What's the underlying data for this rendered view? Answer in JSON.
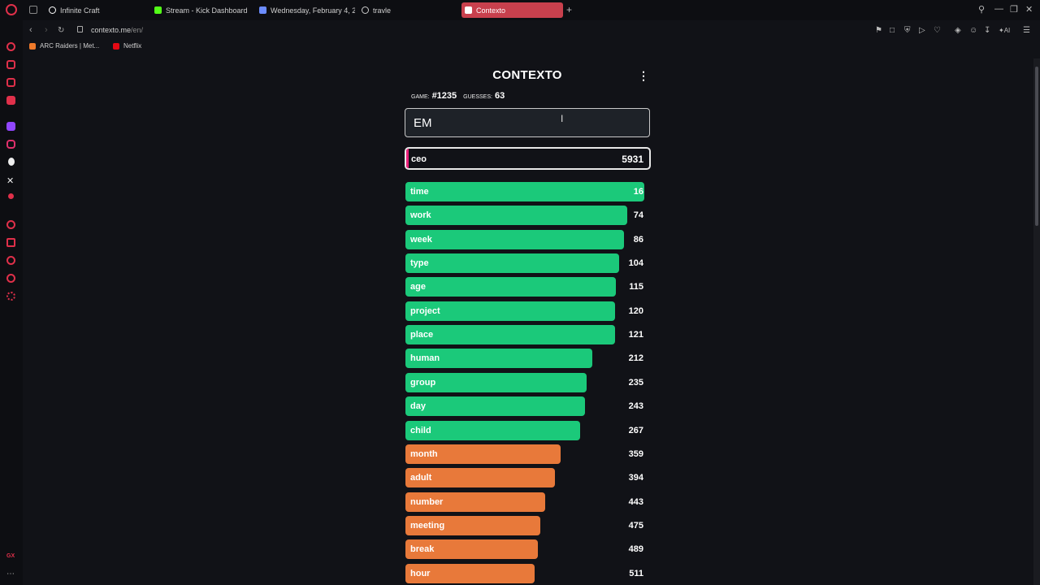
{
  "browser": {
    "tabs": [
      {
        "label": "Infinite Craft",
        "color": "#ffffff"
      },
      {
        "label": "Stream - Kick Dashboard",
        "color": "#53fc18"
      },
      {
        "label": "Wednesday, February 4, 2",
        "color": "#6b8cff"
      },
      {
        "label": "travle",
        "color": "#cccccc"
      },
      {
        "label": "Contexto",
        "color": "#ffffff"
      }
    ],
    "url_host": "contexto.me",
    "url_path": "/en/",
    "bookmarks": [
      {
        "label": "ARC Raiders | Met...",
        "color": "#f07a2a"
      },
      {
        "label": "Netflix",
        "color": "#e50914"
      }
    ]
  },
  "game": {
    "title": "CONTEXTO",
    "game_label": "Game:",
    "game_number": "#1235",
    "guesses_label": "Guesses:",
    "guesses_count": "63",
    "input_value": "EM",
    "last_guess": {
      "word": "ceo",
      "rank": "5931",
      "fill": 0.01,
      "color": "#e91f7a"
    },
    "colors": {
      "green": "#1bc97a",
      "orange": "#e8793a",
      "pink": "#e91f7a"
    },
    "guesses": [
      {
        "word": "time",
        "rank": "16",
        "fill": 1.0,
        "color": "green"
      },
      {
        "word": "work",
        "rank": "74",
        "fill": 0.93,
        "color": "green"
      },
      {
        "word": "week",
        "rank": "86",
        "fill": 0.915,
        "color": "green"
      },
      {
        "word": "type",
        "rank": "104",
        "fill": 0.895,
        "color": "green"
      },
      {
        "word": "age",
        "rank": "115",
        "fill": 0.88,
        "color": "green"
      },
      {
        "word": "project",
        "rank": "120",
        "fill": 0.877,
        "color": "green"
      },
      {
        "word": "place",
        "rank": "121",
        "fill": 0.877,
        "color": "green"
      },
      {
        "word": "human",
        "rank": "212",
        "fill": 0.783,
        "color": "green"
      },
      {
        "word": "group",
        "rank": "235",
        "fill": 0.76,
        "color": "green"
      },
      {
        "word": "day",
        "rank": "243",
        "fill": 0.75,
        "color": "green"
      },
      {
        "word": "child",
        "rank": "267",
        "fill": 0.73,
        "color": "green"
      },
      {
        "word": "month",
        "rank": "359",
        "fill": 0.65,
        "color": "orange"
      },
      {
        "word": "adult",
        "rank": "394",
        "fill": 0.625,
        "color": "orange"
      },
      {
        "word": "number",
        "rank": "443",
        "fill": 0.585,
        "color": "orange"
      },
      {
        "word": "meeting",
        "rank": "475",
        "fill": 0.565,
        "color": "orange"
      },
      {
        "word": "break",
        "rank": "489",
        "fill": 0.555,
        "color": "orange"
      },
      {
        "word": "hour",
        "rank": "511",
        "fill": 0.54,
        "color": "orange"
      }
    ]
  }
}
